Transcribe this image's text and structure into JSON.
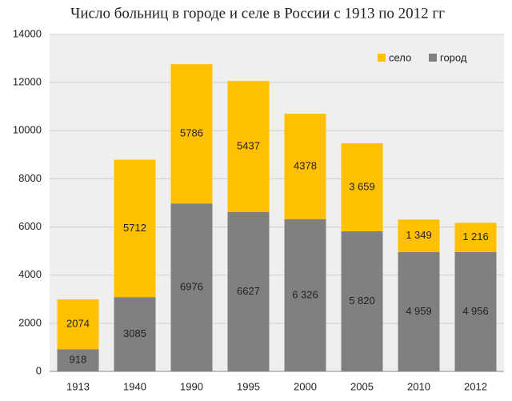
{
  "chart_data": {
    "type": "stacked_bar",
    "title": "Число больниц в городе и селе в России с 1913 по 2012 гг",
    "categories": [
      "1913",
      "1940",
      "1990",
      "1995",
      "2000",
      "2005",
      "2010",
      "2012"
    ],
    "series": [
      {
        "name": "город",
        "color": "#808080",
        "values": [
          918,
          3085,
          6976,
          6627,
          6326,
          5820,
          4959,
          4956
        ],
        "value_labels": [
          "918",
          "3085",
          "6976",
          "6627",
          "6 326",
          "5 820",
          "4 959",
          "4 956"
        ]
      },
      {
        "name": "село",
        "color": "#ffc000",
        "values": [
          2074,
          5712,
          5786,
          5437,
          4378,
          3659,
          1349,
          1216
        ],
        "value_labels": [
          "2074",
          "5712",
          "5786",
          "5437",
          "4378",
          "3 659",
          "1 349",
          "1 216"
        ]
      }
    ],
    "ylim": [
      0,
      14000
    ],
    "yticks": [
      0,
      2000,
      4000,
      6000,
      8000,
      10000,
      12000,
      14000
    ],
    "grid": true,
    "legend": "top-right"
  }
}
